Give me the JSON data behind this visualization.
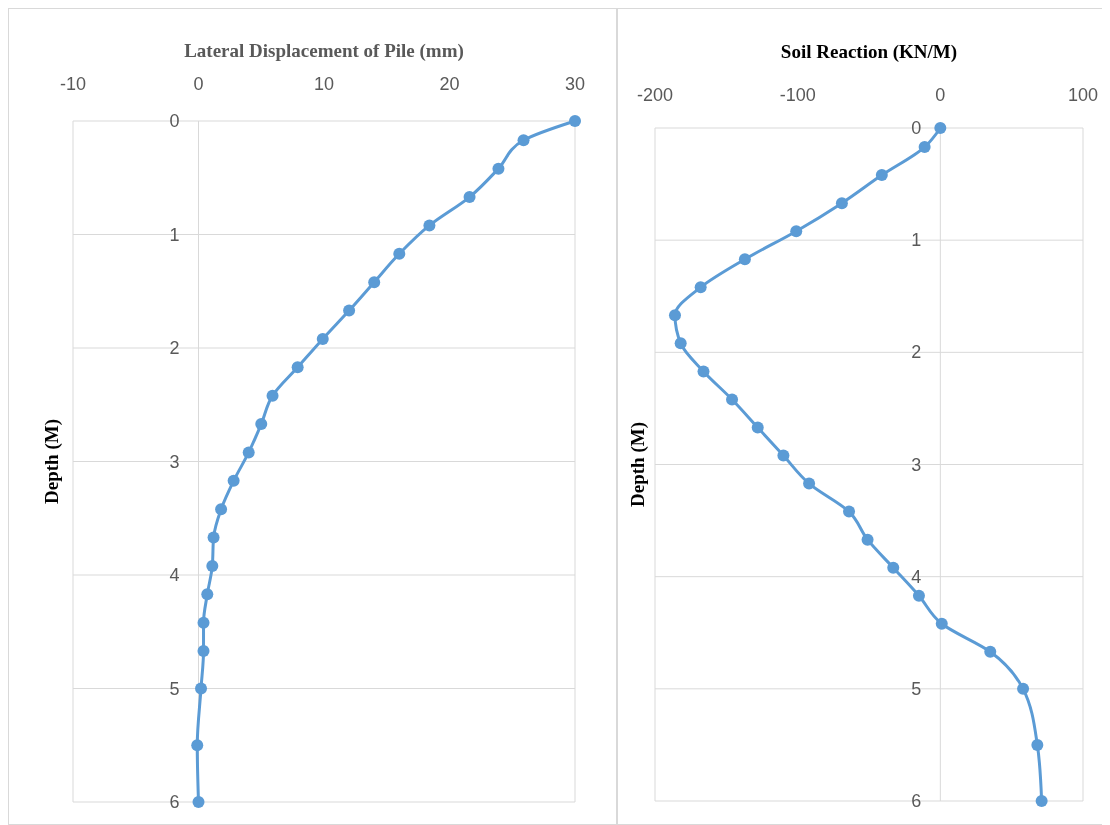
{
  "chart_data": [
    {
      "type": "line",
      "title": "Lateral Displacement of Pile (mm)",
      "ylabel": "Depth (M)",
      "xlim": [
        -10,
        30
      ],
      "xticks": [
        -10,
        0,
        10,
        20,
        30
      ],
      "ylim": [
        6,
        0
      ],
      "yticks": [
        0,
        1,
        2,
        3,
        4,
        5,
        6
      ],
      "grid": "y",
      "marker": "circle",
      "line_style": "solid",
      "series": [
        {
          "color": "#5b9bd5",
          "x": [
            30,
            25.9,
            23.9,
            21.6,
            18.4,
            16.0,
            14.0,
            12.0,
            9.9,
            7.9,
            5.9,
            5.0,
            4.0,
            2.8,
            1.8,
            1.2,
            1.1,
            0.7,
            0.4,
            0.4,
            0.2,
            -0.1,
            0
          ],
          "values": [
            0,
            0.17,
            0.42,
            0.67,
            0.92,
            1.17,
            1.42,
            1.67,
            1.92,
            2.17,
            2.42,
            2.67,
            2.92,
            3.17,
            3.42,
            3.67,
            3.92,
            4.17,
            4.42,
            4.67,
            5.0,
            5.5,
            6.0
          ]
        }
      ]
    },
    {
      "type": "line",
      "title": "Soil Reaction (KN/M)",
      "ylabel": "Depth (M)",
      "xlim": [
        -200,
        100
      ],
      "xticks": [
        -200,
        -100,
        0,
        100
      ],
      "ylim": [
        6,
        0
      ],
      "yticks": [
        0,
        1,
        2,
        3,
        4,
        5,
        6
      ],
      "grid": "y",
      "marker": "circle",
      "line_style": "solid",
      "series": [
        {
          "color": "#5b9bd5",
          "x": [
            0,
            -11,
            -41,
            -69,
            -101,
            -137,
            -168,
            -186,
            -182,
            -166,
            -146,
            -128,
            -110,
            -92,
            -64,
            -51,
            -33,
            -15,
            1,
            35,
            58,
            68,
            71
          ],
          "values": [
            0,
            0.17,
            0.42,
            0.67,
            0.92,
            1.17,
            1.42,
            1.67,
            1.92,
            2.17,
            2.42,
            2.67,
            2.92,
            3.17,
            3.42,
            3.67,
            3.92,
            4.17,
            4.42,
            4.67,
            5.0,
            5.5,
            6.0
          ]
        }
      ]
    }
  ]
}
